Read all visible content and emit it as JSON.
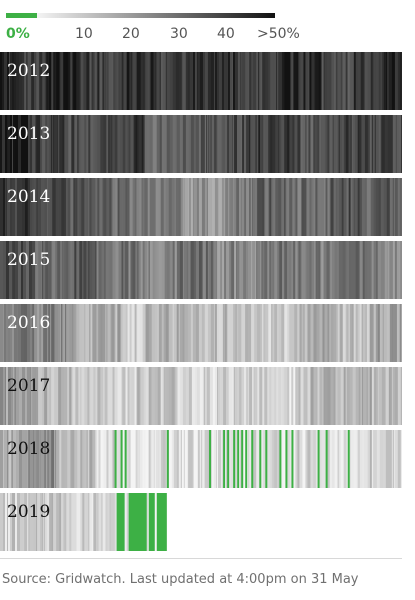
{
  "chart_data": {
    "type": "heatmap",
    "legend": {
      "labels": [
        "0%",
        "10",
        "20",
        "30",
        "40",
        ">50%"
      ],
      "stops": [
        0,
        10,
        20,
        30,
        40,
        50
      ],
      "zero_color": "#3db045"
    },
    "rows": [
      {
        "year": "2012",
        "segments": [
          {
            "end": 0.06,
            "level": 45
          },
          {
            "end": 0.12,
            "level": 41
          },
          {
            "end": 0.2,
            "level": 46
          },
          {
            "end": 0.3,
            "level": 40
          },
          {
            "end": 0.4,
            "level": 44
          },
          {
            "end": 0.48,
            "level": 38
          },
          {
            "end": 0.6,
            "level": 42
          },
          {
            "end": 0.7,
            "level": 39
          },
          {
            "end": 0.8,
            "level": 43
          },
          {
            "end": 0.88,
            "level": 38
          },
          {
            "end": 0.96,
            "level": 41
          },
          {
            "end": 1.0,
            "level": 44
          }
        ]
      },
      {
        "year": "2013",
        "segments": [
          {
            "end": 0.08,
            "level": 45
          },
          {
            "end": 0.16,
            "level": 40
          },
          {
            "end": 0.28,
            "level": 38
          },
          {
            "end": 0.36,
            "level": 42
          },
          {
            "end": 0.44,
            "level": 30
          },
          {
            "end": 0.52,
            "level": 34
          },
          {
            "end": 0.62,
            "level": 38
          },
          {
            "end": 0.72,
            "level": 40
          },
          {
            "end": 0.82,
            "level": 36
          },
          {
            "end": 0.9,
            "level": 39
          },
          {
            "end": 1.0,
            "level": 37
          }
        ]
      },
      {
        "year": "2014",
        "segments": [
          {
            "end": 0.08,
            "level": 42
          },
          {
            "end": 0.16,
            "level": 38
          },
          {
            "end": 0.28,
            "level": 35
          },
          {
            "end": 0.36,
            "level": 30
          },
          {
            "end": 0.46,
            "level": 25
          },
          {
            "end": 0.56,
            "level": 21
          },
          {
            "end": 0.64,
            "level": 27
          },
          {
            "end": 0.72,
            "level": 33
          },
          {
            "end": 0.82,
            "level": 30
          },
          {
            "end": 0.9,
            "level": 36
          },
          {
            "end": 1.0,
            "level": 33
          }
        ]
      },
      {
        "year": "2015",
        "segments": [
          {
            "end": 0.08,
            "level": 36
          },
          {
            "end": 0.16,
            "level": 32
          },
          {
            "end": 0.24,
            "level": 35
          },
          {
            "end": 0.34,
            "level": 28
          },
          {
            "end": 0.44,
            "level": 26
          },
          {
            "end": 0.54,
            "level": 29
          },
          {
            "end": 0.64,
            "level": 24
          },
          {
            "end": 0.74,
            "level": 27
          },
          {
            "end": 0.84,
            "level": 25
          },
          {
            "end": 0.94,
            "level": 28
          },
          {
            "end": 1.0,
            "level": 22
          }
        ]
      },
      {
        "year": "2016",
        "segments": [
          {
            "end": 0.08,
            "level": 28
          },
          {
            "end": 0.18,
            "level": 24
          },
          {
            "end": 0.3,
            "level": 16
          },
          {
            "end": 0.36,
            "level": 8
          },
          {
            "end": 0.46,
            "level": 14
          },
          {
            "end": 0.56,
            "level": 11
          },
          {
            "end": 0.64,
            "level": 13
          },
          {
            "end": 0.74,
            "level": 10
          },
          {
            "end": 0.84,
            "level": 15
          },
          {
            "end": 0.92,
            "level": 12
          },
          {
            "end": 1.0,
            "level": 18
          }
        ]
      },
      {
        "year": "2017",
        "segments": [
          {
            "end": 0.08,
            "level": 18
          },
          {
            "end": 0.18,
            "level": 14
          },
          {
            "end": 0.26,
            "level": 9
          },
          {
            "end": 0.34,
            "level": 6
          },
          {
            "end": 0.44,
            "level": 10
          },
          {
            "end": 0.54,
            "level": 7
          },
          {
            "end": 0.64,
            "level": 8
          },
          {
            "end": 0.74,
            "level": 6
          },
          {
            "end": 0.84,
            "level": 12
          },
          {
            "end": 0.92,
            "level": 15
          },
          {
            "end": 1.0,
            "level": 13
          }
        ]
      },
      {
        "year": "2018",
        "segments": [
          {
            "end": 0.06,
            "level": 15
          },
          {
            "end": 0.14,
            "level": 22
          },
          {
            "end": 0.24,
            "level": 12
          },
          {
            "end": 0.32,
            "level": 6
          },
          {
            "end": 0.42,
            "level": 4
          },
          {
            "end": 0.52,
            "level": 5
          },
          {
            "end": 0.62,
            "level": 3
          },
          {
            "end": 0.72,
            "level": 5
          },
          {
            "end": 0.82,
            "level": 7
          },
          {
            "end": 0.92,
            "level": 6
          },
          {
            "end": 1.0,
            "level": 8
          }
        ],
        "zero_days": [
          0.285,
          0.3,
          0.31,
          0.415,
          0.52,
          0.555,
          0.565,
          0.58,
          0.59,
          0.6,
          0.61,
          0.625,
          0.645,
          0.66,
          0.695,
          0.71,
          0.725,
          0.79,
          0.81,
          0.865
        ]
      },
      {
        "year": "2019",
        "extent": 0.415,
        "segments": [
          {
            "end": 0.06,
            "level": 8
          },
          {
            "end": 0.16,
            "level": 10
          },
          {
            "end": 0.24,
            "level": 7
          },
          {
            "end": 0.3,
            "level": 5
          },
          {
            "end": 0.35,
            "level": 3
          },
          {
            "end": 0.415,
            "level": 2
          }
        ],
        "zero_ranges": [
          [
            0.29,
            0.31
          ],
          [
            0.32,
            0.365
          ],
          [
            0.37,
            0.385
          ],
          [
            0.39,
            0.415
          ]
        ]
      }
    ],
    "source": "Source: Gridwatch. Last updated at 4:00pm on 31 May"
  }
}
